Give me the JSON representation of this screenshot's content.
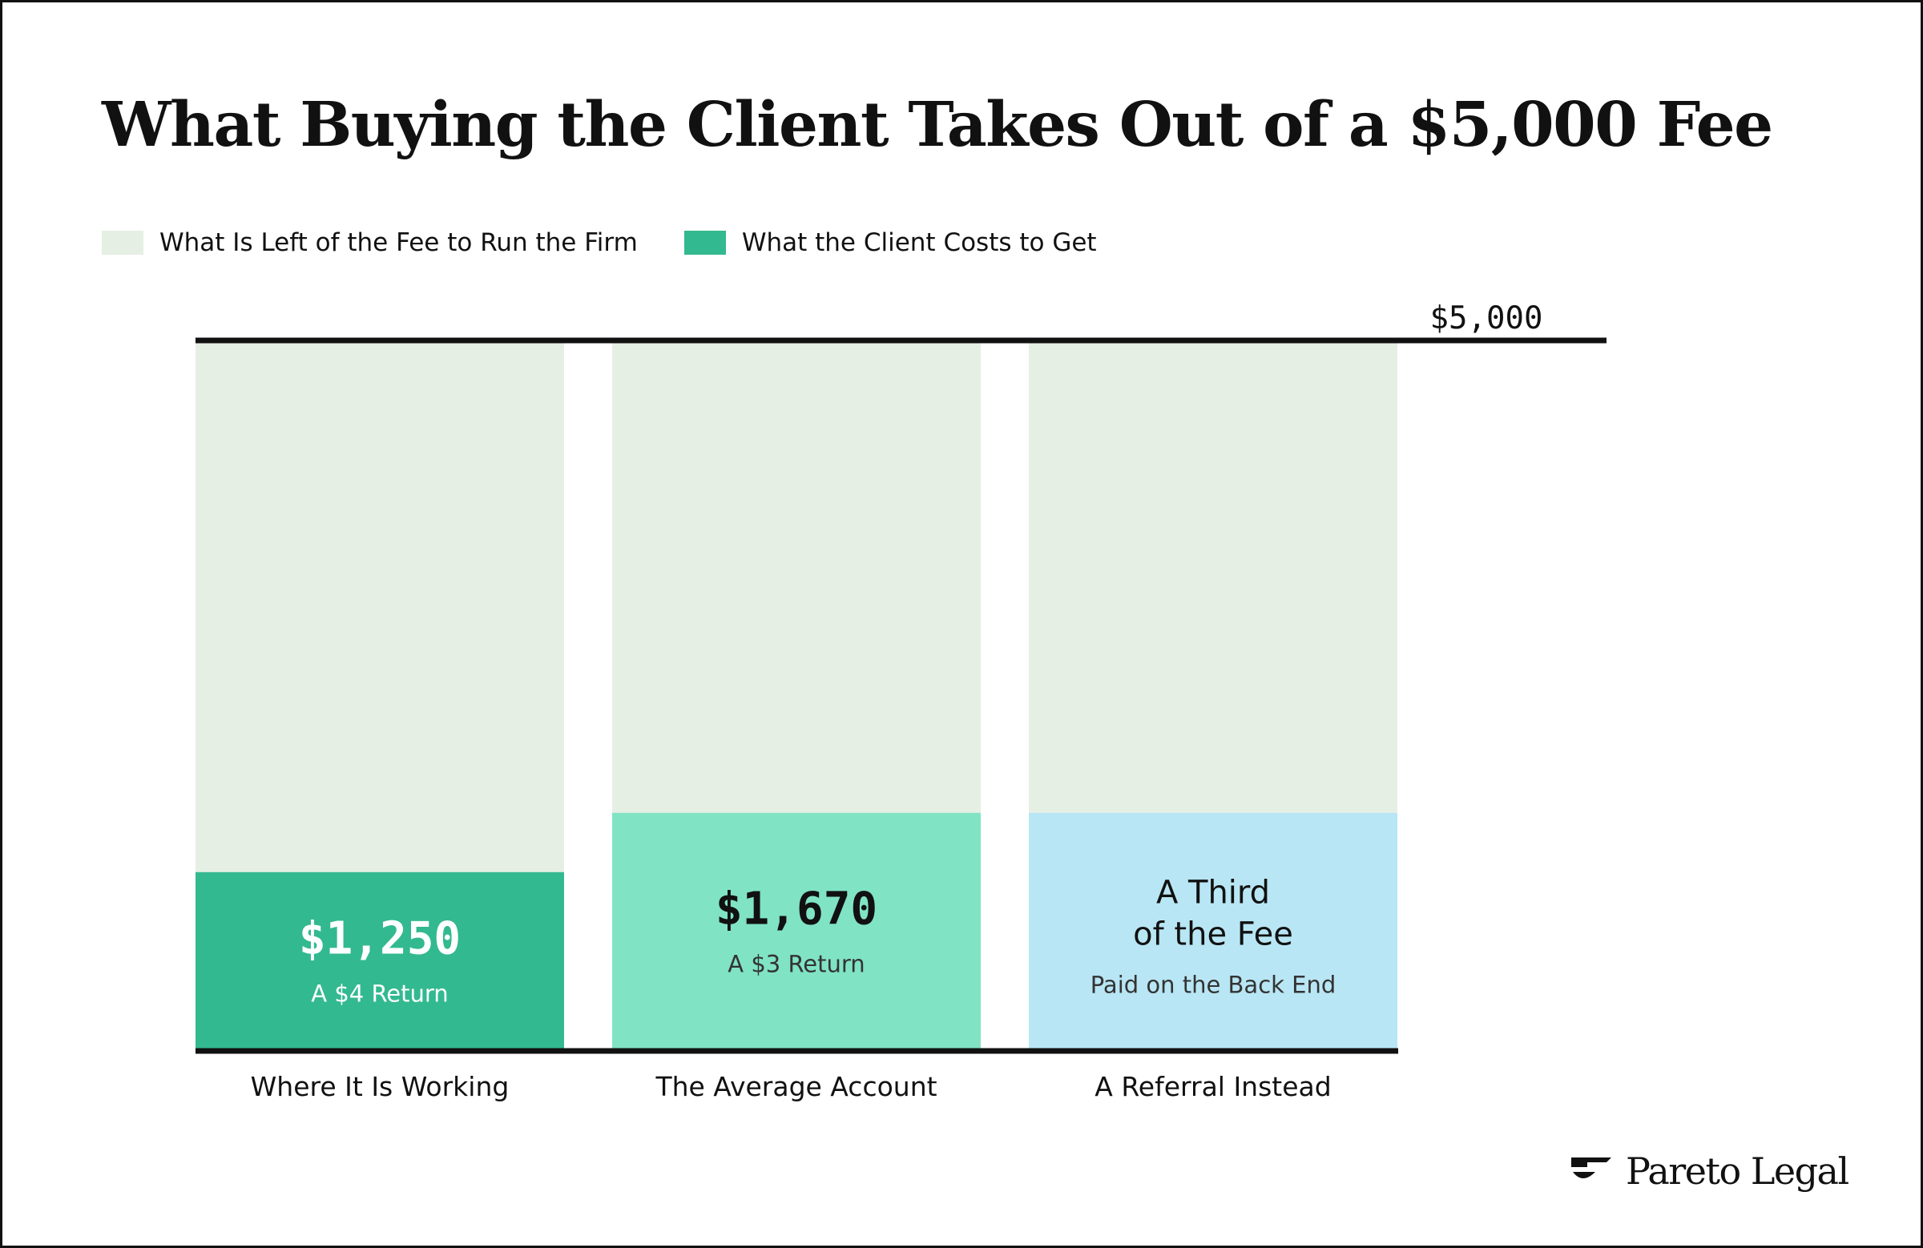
{
  "title": "What Buying the Client Takes Out of a $5,000 Fee",
  "legend": [
    {
      "label": "What Is Left of the Fee to Run the Firm",
      "color": "#e6efe4"
    },
    {
      "label": "What the Client Costs to Get",
      "color": "#33b98f"
    }
  ],
  "brand": {
    "name": "Pareto Legal"
  },
  "chart_data": {
    "type": "bar",
    "stacked": true,
    "ylim": [
      0,
      5000
    ],
    "reference_line": {
      "value": 5000,
      "label": "$5,000"
    },
    "categories": [
      "Where It Is Working",
      "The Average Account",
      "A Referral Instead"
    ],
    "series": [
      {
        "name": "What the Client Costs to Get",
        "values": [
          1250,
          1670,
          1670
        ],
        "colors": [
          "#33b98f",
          "#80e3c4",
          "#b8e6f4"
        ],
        "label_colors": [
          "#ffffff",
          "#111111",
          "#111111"
        ],
        "sublabel_colors": [
          "#ffffff",
          "#333333",
          "#333333"
        ],
        "labels": [
          {
            "lines": [
              "$1,250"
            ],
            "mono": true,
            "sub": "A $4 Return"
          },
          {
            "lines": [
              "$1,670"
            ],
            "mono": true,
            "sub": "A $3 Return"
          },
          {
            "lines": [
              "A Third",
              "of the Fee"
            ],
            "mono": false,
            "sub": "Paid on the Back End"
          }
        ]
      },
      {
        "name": "What Is Left of the Fee to Run the Firm",
        "values": [
          3750,
          3330,
          3330
        ],
        "color": "#e6efe4"
      }
    ]
  }
}
